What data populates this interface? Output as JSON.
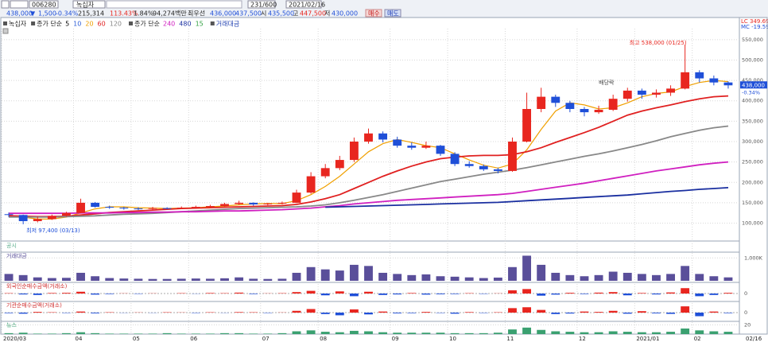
{
  "toolbar": {
    "code": "006280",
    "name": "녹십자",
    "count": "231/600",
    "date": "2021/02/16"
  },
  "quote": {
    "price": "438,000",
    "direction": "▼",
    "change": "1,500",
    "change_pct": "-0.34%",
    "volume": "215,314",
    "vol_ratio": "113.43%",
    "turnover": "1.84%",
    "amount": "94,274백만",
    "best_label": "최우선",
    "ask": "436,000",
    "bid": "437,500",
    "open_label": "시",
    "open": "435,500",
    "high_label": "고",
    "high": "447,500",
    "low_label": "저",
    "low": "430,000",
    "buy": "매수",
    "sell": "매도"
  },
  "indicators": [
    "LC 349.69",
    "MC -19.59"
  ],
  "chart_data": [
    {
      "type": "candlestick",
      "title": "녹십자",
      "legend": [
        {
          "label": "종가 단순",
          "periods": [
            5,
            10,
            20,
            60,
            120
          ],
          "colors": [
            "#000000",
            "#2a5bd7",
            "#f0a000",
            "#e02020",
            "#888888"
          ]
        },
        {
          "label": "종가 단순",
          "periods": [
            240,
            480,
            15
          ],
          "colors": [
            "#d020c0",
            "#1a2fa0",
            "#30a040"
          ]
        },
        {
          "label": "거래대금",
          "periods": [],
          "colors": []
        }
      ],
      "categories": [
        "2020/03",
        null,
        null,
        null,
        null,
        "04",
        null,
        null,
        null,
        "05",
        null,
        null,
        null,
        "06",
        null,
        null,
        null,
        null,
        "07",
        null,
        null,
        null,
        "08",
        null,
        null,
        null,
        null,
        "09",
        null,
        null,
        null,
        "10",
        null,
        null,
        null,
        "11",
        null,
        null,
        null,
        null,
        "12",
        null,
        null,
        null,
        "2021/01",
        null,
        null,
        null,
        "02",
        null,
        null
      ],
      "x_end_label": "02/16",
      "up_color": "#e8261f",
      "down_color": "#1f4fd8",
      "ohlc": [
        [
          122000,
          126000,
          115000,
          120000
        ],
        [
          120000,
          121000,
          97400,
          105000
        ],
        [
          105000,
          116000,
          102000,
          110000
        ],
        [
          110000,
          121000,
          108000,
          118000
        ],
        [
          118000,
          128000,
          116000,
          125000
        ],
        [
          125000,
          160000,
          124000,
          150000
        ],
        [
          150000,
          152000,
          138000,
          140000
        ],
        [
          140000,
          143000,
          135000,
          138000
        ],
        [
          138000,
          140000,
          133000,
          136000
        ],
        [
          136000,
          139000,
          132000,
          135000
        ],
        [
          135000,
          140000,
          133000,
          137000
        ],
        [
          137000,
          139000,
          134000,
          136000
        ],
        [
          136000,
          141000,
          135000,
          138000
        ],
        [
          138000,
          143000,
          136000,
          140000
        ],
        [
          140000,
          145000,
          138000,
          142000
        ],
        [
          142000,
          150000,
          141000,
          147000
        ],
        [
          147000,
          155000,
          145000,
          150000
        ],
        [
          150000,
          151000,
          143000,
          146000
        ],
        [
          146000,
          150000,
          144000,
          148000
        ],
        [
          148000,
          153000,
          146000,
          150000
        ],
        [
          150000,
          182000,
          149000,
          175000
        ],
        [
          175000,
          225000,
          172000,
          215000
        ],
        [
          215000,
          245000,
          210000,
          235000
        ],
        [
          235000,
          265000,
          230000,
          255000
        ],
        [
          255000,
          310000,
          250000,
          300000
        ],
        [
          300000,
          332000,
          295000,
          320000
        ],
        [
          320000,
          325000,
          298000,
          305000
        ],
        [
          305000,
          312000,
          285000,
          290000
        ],
        [
          290000,
          298000,
          280000,
          285000
        ],
        [
          285000,
          300000,
          282000,
          290000
        ],
        [
          290000,
          292000,
          265000,
          270000
        ],
        [
          270000,
          274000,
          240000,
          245000
        ],
        [
          245000,
          252000,
          236000,
          240000
        ],
        [
          240000,
          244000,
          228000,
          232000
        ],
        [
          232000,
          236000,
          222000,
          228000
        ],
        [
          228000,
          310000,
          226000,
          300000
        ],
        [
          300000,
          420000,
          298000,
          380000
        ],
        [
          380000,
          432000,
          372000,
          410000
        ],
        [
          410000,
          415000,
          385000,
          395000
        ],
        [
          395000,
          400000,
          372000,
          380000
        ],
        [
          380000,
          385000,
          362000,
          372000
        ],
        [
          372000,
          388000,
          368000,
          378000
        ],
        [
          378000,
          415000,
          375000,
          405000
        ],
        [
          405000,
          432000,
          398000,
          425000
        ],
        [
          425000,
          430000,
          405000,
          415000
        ],
        [
          415000,
          428000,
          408000,
          420000
        ],
        [
          420000,
          438000,
          412000,
          430000
        ],
        [
          430000,
          538000,
          428000,
          470000
        ],
        [
          470000,
          475000,
          445000,
          455000
        ],
        [
          455000,
          462000,
          438000,
          445000
        ],
        [
          445000,
          447500,
          430000,
          438000
        ]
      ],
      "series": [
        {
          "color": "#f0a000",
          "values": [
            120000,
            115000,
            110000,
            110000,
            115000,
            125000,
            135000,
            140000,
            140000,
            138000,
            137000,
            136000,
            137000,
            138000,
            140000,
            142000,
            145000,
            147000,
            148000,
            148000,
            155000,
            170000,
            190000,
            215000,
            245000,
            275000,
            295000,
            305000,
            298000,
            290000,
            285000,
            270000,
            255000,
            242000,
            235000,
            245000,
            280000,
            330000,
            375000,
            395000,
            390000,
            380000,
            383000,
            395000,
            410000,
            418000,
            422000,
            435000,
            445000,
            450000,
            447000
          ]
        },
        {
          "color": "#e02020",
          "values": [
            118000,
            117000,
            116000,
            116000,
            117000,
            120000,
            123000,
            126000,
            128000,
            130000,
            132000,
            134000,
            136000,
            137000,
            138000,
            139000,
            140000,
            141000,
            142000,
            143000,
            146000,
            152000,
            160000,
            170000,
            185000,
            200000,
            215000,
            228000,
            240000,
            250000,
            258000,
            262000,
            265000,
            266000,
            266000,
            268000,
            275000,
            285000,
            298000,
            310000,
            322000,
            335000,
            350000,
            365000,
            375000,
            383000,
            390000,
            398000,
            405000,
            410000,
            412000
          ]
        },
        {
          "color": "#888888",
          "values": [
            115000,
            115000,
            115000,
            115000,
            116000,
            117000,
            118000,
            120000,
            122000,
            123000,
            124000,
            126000,
            128000,
            130000,
            132000,
            134000,
            136000,
            137000,
            138000,
            139000,
            140000,
            142000,
            145000,
            150000,
            156000,
            163000,
            170000,
            178000,
            186000,
            194000,
            202000,
            208000,
            214000,
            220000,
            225000,
            230000,
            236000,
            243000,
            250000,
            257000,
            264000,
            270000,
            277000,
            285000,
            293000,
            302000,
            312000,
            320000,
            328000,
            334000,
            338000
          ]
        },
        {
          "color": "#d020c0",
          "values": [
            124000,
            124000,
            124000,
            124000,
            124000,
            125000,
            125000,
            125000,
            126000,
            126000,
            127000,
            127000,
            128000,
            128000,
            129000,
            130000,
            130000,
            131000,
            132000,
            133000,
            135000,
            137000,
            140000,
            143000,
            147000,
            150000,
            153000,
            156000,
            158000,
            160000,
            162000,
            164000,
            166000,
            168000,
            170000,
            173000,
            178000,
            183000,
            188000,
            193000,
            198000,
            204000,
            210000,
            216000,
            222000,
            228000,
            233000,
            238000,
            243000,
            247000,
            250000
          ]
        },
        {
          "color": "#1a2fa0",
          "values": [
            null,
            null,
            null,
            null,
            null,
            null,
            null,
            null,
            null,
            null,
            null,
            null,
            null,
            null,
            null,
            null,
            null,
            null,
            null,
            null,
            null,
            null,
            139000,
            140000,
            141000,
            142000,
            143000,
            144000,
            145000,
            146000,
            147000,
            148000,
            149000,
            150000,
            151000,
            153000,
            155000,
            157000,
            159000,
            161000,
            163000,
            165000,
            167000,
            169000,
            172000,
            175000,
            178000,
            180000,
            183000,
            185000,
            187000
          ]
        }
      ],
      "annotations": [
        "최고 538,000 (01/25)",
        "최저 97,400 (03/13)",
        "배당락"
      ],
      "ylim": [
        64000,
        577000
      ],
      "yticks": [
        {
          "value": 100000,
          "label": "100,000"
        },
        {
          "value": 150000,
          "label": "150,000"
        },
        {
          "value": 200000,
          "label": "200,000"
        },
        {
          "value": 250000,
          "label": "250,000"
        },
        {
          "value": 300000,
          "label": "300,000"
        },
        {
          "value": 350000,
          "label": "350,000"
        },
        {
          "value": 400000,
          "label": "400,000"
        },
        {
          "value": 450000,
          "label": "450,000"
        },
        {
          "value": 500000,
          "label": "500,000"
        },
        {
          "value": 550000,
          "label": "550,000"
        }
      ],
      "grid": true
    },
    {
      "type": "label",
      "title": "공시"
    },
    {
      "type": "bar",
      "title": "거래대금",
      "color": "#5a4f9a",
      "values": [
        300,
        250,
        150,
        120,
        130,
        350,
        200,
        120,
        100,
        90,
        80,
        80,
        90,
        100,
        90,
        110,
        150,
        90,
        80,
        90,
        350,
        600,
        500,
        450,
        700,
        650,
        350,
        300,
        250,
        280,
        200,
        180,
        150,
        120,
        140,
        600,
        1100,
        700,
        350,
        250,
        200,
        250,
        400,
        350,
        300,
        250,
        300,
        650,
        300,
        200,
        150
      ],
      "ylim": [
        0,
        1150
      ],
      "yticks": [
        {
          "value": 1000,
          "label": "1,000K"
        }
      ]
    },
    {
      "type": "signed-bar",
      "title": "외국인순매수금액(거래소)",
      "pos_color": "#e8261f",
      "neg_color": "#1f4fd8",
      "values": [
        2,
        -5,
        -8,
        3,
        4,
        10,
        -6,
        -3,
        1,
        -2,
        1,
        0,
        2,
        -1,
        3,
        2,
        5,
        -3,
        1,
        2,
        8,
        15,
        -10,
        12,
        -15,
        10,
        -8,
        -5,
        3,
        -6,
        -4,
        -3,
        2,
        -2,
        1,
        18,
        25,
        -12,
        -6,
        4,
        -3,
        5,
        8,
        -10,
        3,
        -5,
        6,
        30,
        -15,
        -8,
        4
      ],
      "ylim": [
        -40,
        40
      ],
      "yticks": [
        0
      ]
    },
    {
      "type": "signed-bar",
      "title": "기관순매수금액(거래소)",
      "pos_color": "#e8261f",
      "neg_color": "#1f4fd8",
      "values": [
        -3,
        -6,
        4,
        2,
        -2,
        6,
        -4,
        2,
        -1,
        1,
        -1,
        2,
        1,
        -2,
        2,
        -1,
        3,
        2,
        -2,
        1,
        10,
        20,
        -8,
        -15,
        18,
        -10,
        6,
        -4,
        -3,
        4,
        -2,
        -6,
        3,
        -2,
        2,
        25,
        30,
        15,
        -8,
        -5,
        6,
        4,
        10,
        -6,
        8,
        -4,
        -7,
        35,
        -20,
        6,
        -3
      ],
      "ylim": [
        -40,
        40
      ],
      "yticks": [
        0
      ]
    },
    {
      "type": "bar",
      "title": "뉴스",
      "color": "#3aa070",
      "values": [
        2,
        3,
        1,
        1,
        2,
        4,
        2,
        1,
        1,
        1,
        1,
        2,
        1,
        1,
        1,
        2,
        2,
        1,
        1,
        2,
        6,
        8,
        5,
        4,
        7,
        6,
        4,
        3,
        3,
        3,
        3,
        2,
        2,
        2,
        3,
        10,
        14,
        9,
        6,
        5,
        4,
        4,
        6,
        5,
        4,
        4,
        5,
        12,
        8,
        6,
        5
      ],
      "ylim": [
        0,
        24
      ],
      "yticks": [
        20
      ]
    }
  ]
}
